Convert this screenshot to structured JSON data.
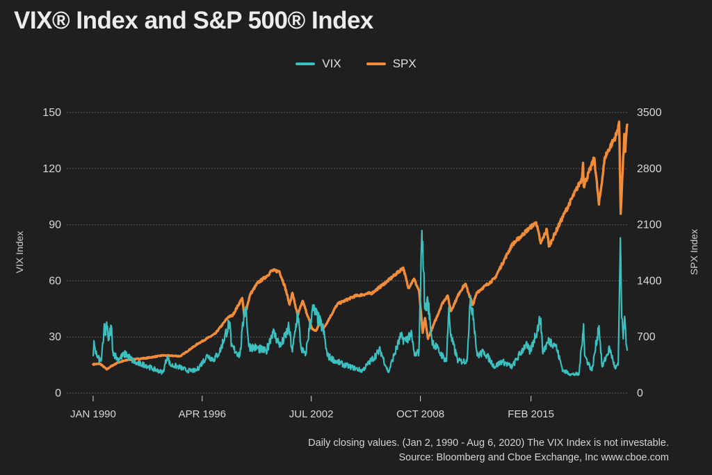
{
  "chart_data": {
    "type": "line",
    "title": "VIX® Index and S&P 500® Index",
    "left_axis": {
      "label": "VIX Index",
      "ylim": [
        0,
        150
      ],
      "ticks": [
        0,
        30,
        60,
        90,
        120,
        150
      ]
    },
    "right_axis": {
      "label": "SPX Index",
      "ylim": [
        0,
        3500
      ],
      "ticks": [
        0,
        700,
        1400,
        2100,
        2800,
        3500
      ]
    },
    "x_axis": {
      "range": [
        "1990-01-02",
        "2020-08-06"
      ],
      "ticks": [
        {
          "date": "1990-01-01",
          "label": "JAN 1990"
        },
        {
          "date": "1996-04-01",
          "label": "APR 1996"
        },
        {
          "date": "2002-07-01",
          "label": "JUL 2002"
        },
        {
          "date": "2008-10-01",
          "label": "OCT 2008"
        },
        {
          "date": "2015-02-01",
          "label": "FEB 2015"
        }
      ]
    },
    "grid": "horizontal",
    "legend_position": "top-center",
    "series": [
      {
        "name": "VIX",
        "axis": "left",
        "color": "#3cbfbf",
        "points": [
          [
            "1990-01-02",
            20
          ],
          [
            "1990-01-20",
            28
          ],
          [
            "1990-02-15",
            23
          ],
          [
            "1990-04-01",
            19
          ],
          [
            "1990-06-15",
            17
          ],
          [
            "1990-08-05",
            28
          ],
          [
            "1990-08-23",
            37
          ],
          [
            "1990-09-20",
            31
          ],
          [
            "1990-10-12",
            38
          ],
          [
            "1990-11-15",
            28
          ],
          [
            "1991-01-15",
            36
          ],
          [
            "1991-02-20",
            22
          ],
          [
            "1991-06-01",
            18
          ],
          [
            "1991-11-15",
            21
          ],
          [
            "1992-06-01",
            16
          ],
          [
            "1993-01-01",
            15
          ],
          [
            "1993-06-01",
            13
          ],
          [
            "1994-01-01",
            11
          ],
          [
            "1994-04-04",
            20
          ],
          [
            "1994-06-01",
            15
          ],
          [
            "1994-12-01",
            14
          ],
          [
            "1995-06-01",
            12
          ],
          [
            "1995-12-01",
            12
          ],
          [
            "1996-07-15",
            20
          ],
          [
            "1996-12-01",
            18
          ],
          [
            "1997-04-01",
            22
          ],
          [
            "1997-10-27",
            38
          ],
          [
            "1997-12-01",
            25
          ],
          [
            "1998-06-01",
            20
          ],
          [
            "1998-08-31",
            44
          ],
          [
            "1998-10-08",
            45
          ],
          [
            "1998-12-01",
            25
          ],
          [
            "1999-06-01",
            24
          ],
          [
            "1999-12-01",
            22
          ],
          [
            "2000-04-14",
            33
          ],
          [
            "2000-10-01",
            25
          ],
          [
            "2001-03-22",
            35
          ],
          [
            "2001-06-01",
            22
          ],
          [
            "2001-09-21",
            43
          ],
          [
            "2001-12-01",
            24
          ],
          [
            "2002-03-01",
            20
          ],
          [
            "2002-07-24",
            45
          ],
          [
            "2002-10-10",
            42
          ],
          [
            "2003-03-11",
            34
          ],
          [
            "2003-06-01",
            20
          ],
          [
            "2003-12-01",
            17
          ],
          [
            "2004-06-01",
            15
          ],
          [
            "2005-06-01",
            12
          ],
          [
            "2006-06-13",
            23
          ],
          [
            "2006-12-01",
            11
          ],
          [
            "2007-02-27",
            18
          ],
          [
            "2007-08-16",
            30
          ],
          [
            "2007-11-26",
            28
          ],
          [
            "2008-03-17",
            32
          ],
          [
            "2008-06-01",
            20
          ],
          [
            "2008-09-01",
            22
          ],
          [
            "2008-10-24",
            80
          ],
          [
            "2008-11-20",
            81
          ],
          [
            "2009-01-01",
            45
          ],
          [
            "2009-03-09",
            49
          ],
          [
            "2009-06-01",
            28
          ],
          [
            "2009-12-01",
            21
          ],
          [
            "2010-04-01",
            17
          ],
          [
            "2010-05-20",
            46
          ],
          [
            "2010-07-01",
            30
          ],
          [
            "2010-12-01",
            17
          ],
          [
            "2011-06-01",
            17
          ],
          [
            "2011-08-08",
            48
          ],
          [
            "2011-10-03",
            45
          ],
          [
            "2012-01-01",
            20
          ],
          [
            "2012-06-01",
            22
          ],
          [
            "2013-01-01",
            14
          ],
          [
            "2013-06-01",
            17
          ],
          [
            "2014-01-01",
            14
          ],
          [
            "2014-10-15",
            26
          ],
          [
            "2015-01-15",
            22
          ],
          [
            "2015-08-24",
            40
          ],
          [
            "2015-10-01",
            22
          ],
          [
            "2016-02-11",
            28
          ],
          [
            "2016-06-27",
            26
          ],
          [
            "2016-12-01",
            12
          ],
          [
            "2017-06-01",
            10
          ],
          [
            "2017-11-01",
            10
          ],
          [
            "2018-02-06",
            37
          ],
          [
            "2018-03-01",
            20
          ],
          [
            "2018-08-01",
            12
          ],
          [
            "2018-12-24",
            36
          ],
          [
            "2019-03-01",
            14
          ],
          [
            "2019-08-05",
            24
          ],
          [
            "2019-12-01",
            13
          ],
          [
            "2020-02-01",
            15
          ],
          [
            "2020-03-16",
            83
          ],
          [
            "2020-04-15",
            40
          ],
          [
            "2020-05-15",
            29
          ],
          [
            "2020-06-11",
            41
          ],
          [
            "2020-07-15",
            26
          ],
          [
            "2020-08-06",
            23
          ]
        ]
      },
      {
        "name": "SPX",
        "axis": "right",
        "color": "#f08c3a",
        "points": [
          [
            "1990-01-02",
            359
          ],
          [
            "1990-06-01",
            365
          ],
          [
            "1990-10-11",
            295
          ],
          [
            "1991-01-01",
            330
          ],
          [
            "1991-06-01",
            380
          ],
          [
            "1992-01-01",
            415
          ],
          [
            "1993-01-01",
            435
          ],
          [
            "1994-01-01",
            470
          ],
          [
            "1995-01-01",
            460
          ],
          [
            "1995-12-31",
            615
          ],
          [
            "1996-12-31",
            740
          ],
          [
            "1997-10-01",
            950
          ],
          [
            "1997-12-31",
            970
          ],
          [
            "1998-07-17",
            1186
          ],
          [
            "1998-08-31",
            957
          ],
          [
            "1998-12-31",
            1229
          ],
          [
            "1999-06-01",
            1370
          ],
          [
            "1999-12-31",
            1469
          ],
          [
            "2000-03-24",
            1527
          ],
          [
            "2000-09-01",
            1520
          ],
          [
            "2001-01-01",
            1320
          ],
          [
            "2001-04-04",
            1103
          ],
          [
            "2001-06-01",
            1250
          ],
          [
            "2001-09-21",
            966
          ],
          [
            "2002-01-01",
            1150
          ],
          [
            "2002-07-23",
            797
          ],
          [
            "2002-10-09",
            777
          ],
          [
            "2003-01-01",
            880
          ],
          [
            "2003-03-11",
            800
          ],
          [
            "2003-12-31",
            1110
          ],
          [
            "2004-12-31",
            1210
          ],
          [
            "2005-12-31",
            1250
          ],
          [
            "2006-12-31",
            1420
          ],
          [
            "2007-10-09",
            1565
          ],
          [
            "2008-01-22",
            1310
          ],
          [
            "2008-05-19",
            1426
          ],
          [
            "2008-09-01",
            1280
          ],
          [
            "2008-11-20",
            752
          ],
          [
            "2009-01-06",
            935
          ],
          [
            "2009-03-09",
            677
          ],
          [
            "2009-12-31",
            1115
          ],
          [
            "2010-04-23",
            1217
          ],
          [
            "2010-07-02",
            1022
          ],
          [
            "2010-12-31",
            1258
          ],
          [
            "2011-04-29",
            1363
          ],
          [
            "2011-10-03",
            1099
          ],
          [
            "2011-12-31",
            1258
          ],
          [
            "2012-12-31",
            1426
          ],
          [
            "2013-12-31",
            1848
          ],
          [
            "2014-12-31",
            2058
          ],
          [
            "2015-05-21",
            2130
          ],
          [
            "2015-08-25",
            1867
          ],
          [
            "2015-12-31",
            2044
          ],
          [
            "2016-02-11",
            1829
          ],
          [
            "2016-12-31",
            2239
          ],
          [
            "2017-12-31",
            2674
          ],
          [
            "2018-01-26",
            2873
          ],
          [
            "2018-02-08",
            2581
          ],
          [
            "2018-09-20",
            2931
          ],
          [
            "2018-12-24",
            2351
          ],
          [
            "2019-04-30",
            2946
          ],
          [
            "2019-12-31",
            3231
          ],
          [
            "2020-02-19",
            3386
          ],
          [
            "2020-03-23",
            2237
          ],
          [
            "2020-06-08",
            3232
          ],
          [
            "2020-06-26",
            3009
          ],
          [
            "2020-08-06",
            3349
          ]
        ]
      }
    ]
  },
  "footnote": {
    "line1": "Daily closing values. (Jan 2, 1990 - Aug 6, 2020) The VIX Index is not investable.",
    "line2": "Source: Bloomberg and Cboe Exchange, Inc www.cboe.com"
  }
}
